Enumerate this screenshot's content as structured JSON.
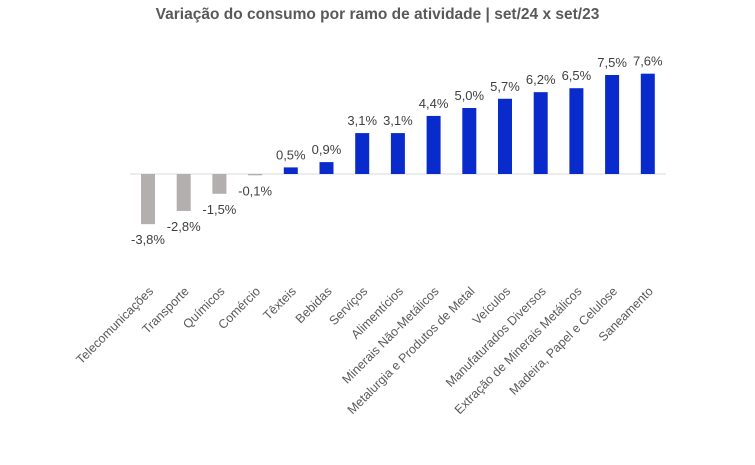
{
  "chart_data": {
    "type": "bar",
    "title": "Variação do consumo por ramo de atividade | set/24 x set/23",
    "xlabel": "",
    "ylabel": "",
    "ylim": [
      -4,
      8
    ],
    "grid": false,
    "legend": "none",
    "categories": [
      "Telecomunicações",
      "Transporte",
      "Químicos",
      "Comércio",
      "Têxteis",
      "Bebidas",
      "Serviços",
      "Alimentícios",
      "Minerais Não-Metálicos",
      "Metalurgia e Produtos de Metal",
      "Veículos",
      "Manufaturados Diversos",
      "Extração de Minerais Metálicos",
      "Madeira, Papel e Celulose",
      "Saneamento"
    ],
    "values": [
      -3.8,
      -2.8,
      -1.5,
      -0.1,
      0.5,
      0.9,
      3.1,
      3.1,
      4.4,
      5.0,
      5.7,
      6.2,
      6.5,
      7.5,
      7.6
    ],
    "data_labels": [
      "-3,8%",
      "-2,8%",
      "-1,5%",
      "-0,1%",
      "0,5%",
      "0,9%",
      "3,1%",
      "3,1%",
      "4,4%",
      "5,0%",
      "5,7%",
      "6,2%",
      "6,5%",
      "7,5%",
      "7,6%"
    ],
    "colors": {
      "positive": "#0a2bcc",
      "negative": "#b3afaf",
      "axis": "#d9d9d9",
      "label": "#404040",
      "category": "#595959"
    }
  }
}
